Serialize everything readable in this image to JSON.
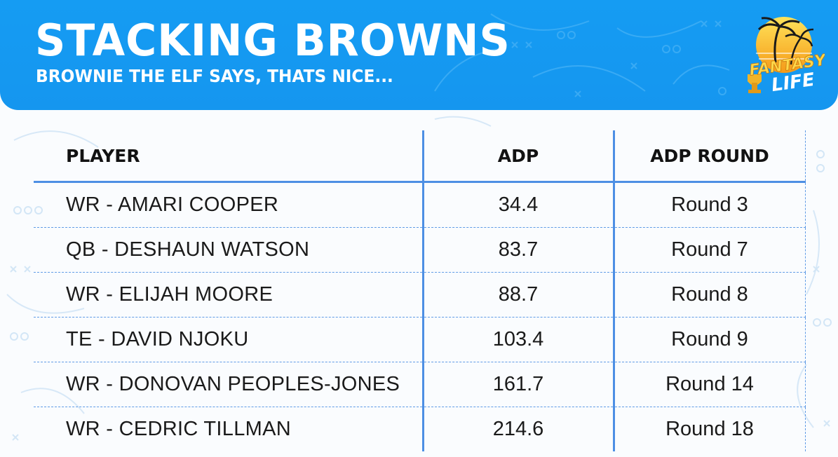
{
  "header": {
    "title": "STACKING BROWNS",
    "subtitle": "BROWNIE THE ELF SAYS, THATS NICE..."
  },
  "logo": {
    "lines": [
      "FANTASY",
      "LIFE"
    ],
    "icon": "palm-tree-trophy-logo"
  },
  "table": {
    "columns": [
      "PLAYER",
      "ADP",
      "ADP ROUND"
    ],
    "rows": [
      {
        "player": "WR - AMARI COOPER",
        "adp": "34.4",
        "round": "Round 3"
      },
      {
        "player": "QB - DESHAUN WATSON",
        "adp": "83.7",
        "round": "Round 7"
      },
      {
        "player": "WR - ELIJAH MOORE",
        "adp": "88.7",
        "round": "Round 8"
      },
      {
        "player": "TE - DAVID NJOKU",
        "adp": "103.4",
        "round": "Round 9"
      },
      {
        "player": "WR - DONOVAN PEOPLES-JONES",
        "adp": "161.7",
        "round": "Round 14"
      },
      {
        "player": "WR - CEDRIC TILLMAN",
        "adp": "214.6",
        "round": "Round 18"
      }
    ]
  },
  "colors": {
    "header_blue": "#159cf3",
    "accent_blue": "#4d8fe4",
    "logo_orange": "#f6a21c",
    "logo_yellow": "#ffd84a"
  }
}
